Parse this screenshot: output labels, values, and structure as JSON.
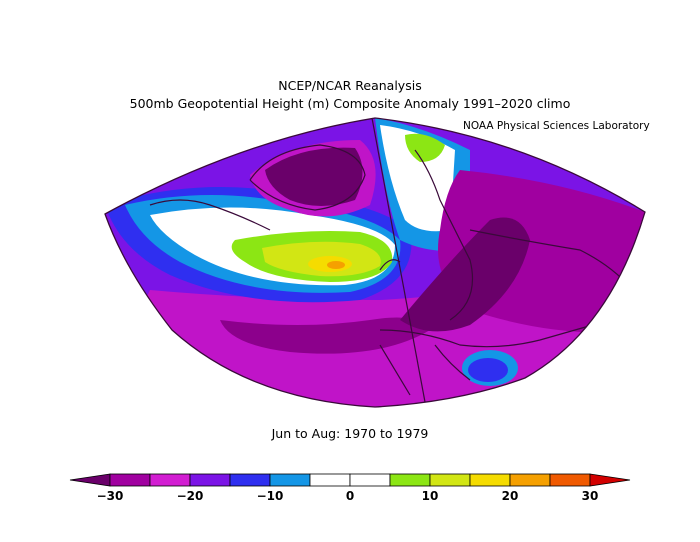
{
  "header": {
    "title": "NCEP/NCAR Reanalysis",
    "subtitle": "500mb Geopotential Height (m) Composite Anomaly 1991–2020 climo",
    "credit": "NOAA Physical Sciences Laboratory"
  },
  "footer": {
    "period": "Jun to Aug: 1970 to 1979"
  },
  "colorbar": {
    "colors": [
      "#6a006a",
      "#a000a0",
      "#d21ed2",
      "#7b14e6",
      "#2f2ff0",
      "#1496e6",
      "#ffffff",
      "#ffffff",
      "#8ce614",
      "#d2e614",
      "#f5dc00",
      "#f5a000",
      "#f05a00",
      "#d20000"
    ],
    "ticks": [
      "−30",
      "−20",
      "−10",
      "0",
      "10",
      "20",
      "30"
    ]
  }
}
